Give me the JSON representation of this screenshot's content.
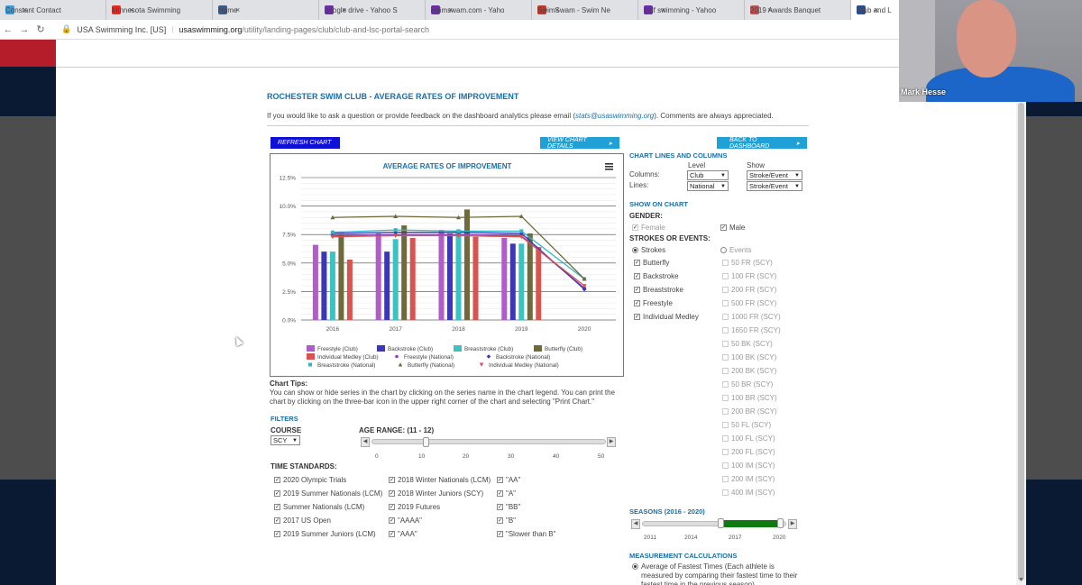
{
  "browser": {
    "tabs": [
      {
        "label": "Constant Contact",
        "color": "#3b9ad9"
      },
      {
        "label": "Minnesota Swimming",
        "color": "#e52d27"
      },
      {
        "label": "Home",
        "color": "#3b5b8a"
      },
      {
        "label": "google drive - Yahoo S",
        "color": "#6b2fa3"
      },
      {
        "label": "swimswam.com - Yaho",
        "color": "#6b2fa3"
      },
      {
        "label": "SwimSwam - Swim Ne",
        "color": "#c0392b"
      },
      {
        "label": "gulf swimming - Yahoo",
        "color": "#6b2fa3"
      },
      {
        "label": "2019 Awards Banquet",
        "color": "#b55"
      },
      {
        "label": "Club and L",
        "color": "#2b4c9a"
      }
    ],
    "site_label": "USA Swimming Inc. [US]",
    "url_host": "usaswimming.org",
    "url_path": "/utility/landing-pages/club/club-and-lsc-portal-search"
  },
  "page": {
    "title": "ROCHESTER SWIM CLUB - AVERAGE RATES OF IMPROVEMENT",
    "intro_before": "If you would like to ask a question or provide feedback on the dashboard analytics please email (",
    "intro_email": "stats@usaswimming.org",
    "intro_after": "). Comments are always appreciated.",
    "refresh_label": "REFRESH CHART",
    "details_label": "VIEW CHART DETAILS",
    "dashboard_label": "BACK TO DASHBOARD",
    "chart_tips_heading": "Chart Tips:",
    "chart_tips_text": "You can show or hide series in the chart by clicking on the series name in the chart legend. You can print the chart by clicking on the three-bar icon in the upper right corner of the chart and selecting \"Print Chart.\"",
    "filters_heading": "FILTERS",
    "course_heading": "COURSE",
    "course_value": "SCY",
    "age_range_heading": "AGE RANGE: (11 - 12)",
    "age_ticks": [
      "0",
      "10",
      "20",
      "30",
      "40",
      "50"
    ],
    "time_standards_heading": "TIME STANDARDS:",
    "time_standards_col1": [
      "2020 Olympic Trials",
      "2019 Summer Nationals (LCM)",
      "Summer Nationals (LCM)",
      "2017 US Open",
      "2019 Summer Juniors (LCM)"
    ],
    "time_standards_col2": [
      "2018 Winter Nationals (LCM)",
      "2018 Winter Juniors (SCY)",
      "2019 Futures",
      "\"AAAA\"",
      "\"AAA\""
    ],
    "time_standards_col3": [
      "\"AA\"",
      "\"A\"",
      "\"BB\"",
      "\"B\"",
      "\"Slower than B\""
    ]
  },
  "sidebar": {
    "lines_columns_heading": "CHART LINES AND COLUMNS",
    "level_label": "Level",
    "show_label": "Show",
    "columns_label": "Columns:",
    "lines_label": "Lines:",
    "columns_level": "Club",
    "columns_show": "Stroke/Event",
    "lines_level": "National",
    "lines_show": "Stroke/Event",
    "show_on_chart_heading": "SHOW ON CHART",
    "gender_label": "GENDER:",
    "female_label": "Female",
    "male_label": "Male",
    "strokes_events_label": "STROKES OR EVENTS:",
    "strokes_label": "Strokes",
    "events_label": "Events",
    "strokes": [
      "Butterfly",
      "Backstroke",
      "Breaststroke",
      "Freestyle",
      "Individual Medley"
    ],
    "events": [
      "50 FR (SCY)",
      "100 FR (SCY)",
      "200 FR (SCY)",
      "500 FR (SCY)",
      "1000 FR (SCY)",
      "1650 FR (SCY)",
      "50 BK (SCY)",
      "100 BK (SCY)",
      "200 BK (SCY)",
      "50 BR (SCY)",
      "100 BR (SCY)",
      "200 BR (SCY)",
      "50 FL (SCY)",
      "100 FL (SCY)",
      "200 FL (SCY)",
      "100 IM (SCY)",
      "200 IM (SCY)",
      "400 IM (SCY)"
    ],
    "seasons_heading": "SEASONS (2016 - 2020)",
    "season_ticks": [
      "2011",
      "2014",
      "2017",
      "2020"
    ],
    "measurement_heading": "MEASUREMENT CALCULATIONS",
    "measurement_option": "Average of Fastest Times (Each athlete is measured by comparing their fastest time to their fastest time in the previous season)"
  },
  "webcam": {
    "name": "Mark Hesse"
  },
  "chart_data": {
    "type": "bar",
    "title": "AVERAGE RATES OF IMPROVEMENT",
    "categories": [
      "2016",
      "2017",
      "2018",
      "2019",
      "2020"
    ],
    "y_ticks": [
      "0.0%",
      "2.5%",
      "5.0%",
      "7.5%",
      "10.0%",
      "12.5%"
    ],
    "ylim": [
      0,
      12.5
    ],
    "grid": true,
    "legend_position": "bottom",
    "bar_series": [
      {
        "name": "Freestyle (Club)",
        "color": "#b05cc9",
        "values": [
          6.6,
          7.6,
          7.9,
          7.2,
          null
        ]
      },
      {
        "name": "Backstroke (Club)",
        "color": "#3c36b8",
        "values": [
          6.0,
          6.0,
          7.6,
          6.7,
          null
        ]
      },
      {
        "name": "Breaststroke (Club)",
        "color": "#3cc2c2",
        "values": [
          6.0,
          7.1,
          7.9,
          6.7,
          null
        ]
      },
      {
        "name": "Butterfly (Club)",
        "color": "#6e6a3c",
        "values": [
          7.5,
          8.3,
          9.7,
          7.6,
          null
        ]
      },
      {
        "name": "Individual Medley (Club)",
        "color": "#d9534f",
        "values": [
          5.3,
          7.2,
          7.3,
          6.4,
          null
        ]
      }
    ],
    "line_series": [
      {
        "name": "Freestyle (National)",
        "color": "#8e44ad",
        "marker": "circle",
        "values": [
          7.4,
          7.5,
          7.5,
          7.4,
          2.8
        ]
      },
      {
        "name": "Backstroke (National)",
        "color": "#3c36b8",
        "marker": "diamond",
        "values": [
          7.6,
          7.7,
          7.7,
          7.6,
          2.7
        ]
      },
      {
        "name": "Breaststroke (National)",
        "color": "#2eb6c9",
        "marker": "square",
        "values": [
          7.7,
          7.9,
          7.8,
          7.8,
          3.6
        ]
      },
      {
        "name": "Butterfly (National)",
        "color": "#6e6a3c",
        "marker": "triangle",
        "values": [
          9.0,
          9.1,
          9.0,
          9.1,
          3.6
        ]
      },
      {
        "name": "Individual Medley (National)",
        "color": "#d9534f",
        "marker": "triangle-down",
        "values": [
          7.3,
          7.4,
          7.4,
          7.3,
          3.0
        ]
      }
    ]
  }
}
